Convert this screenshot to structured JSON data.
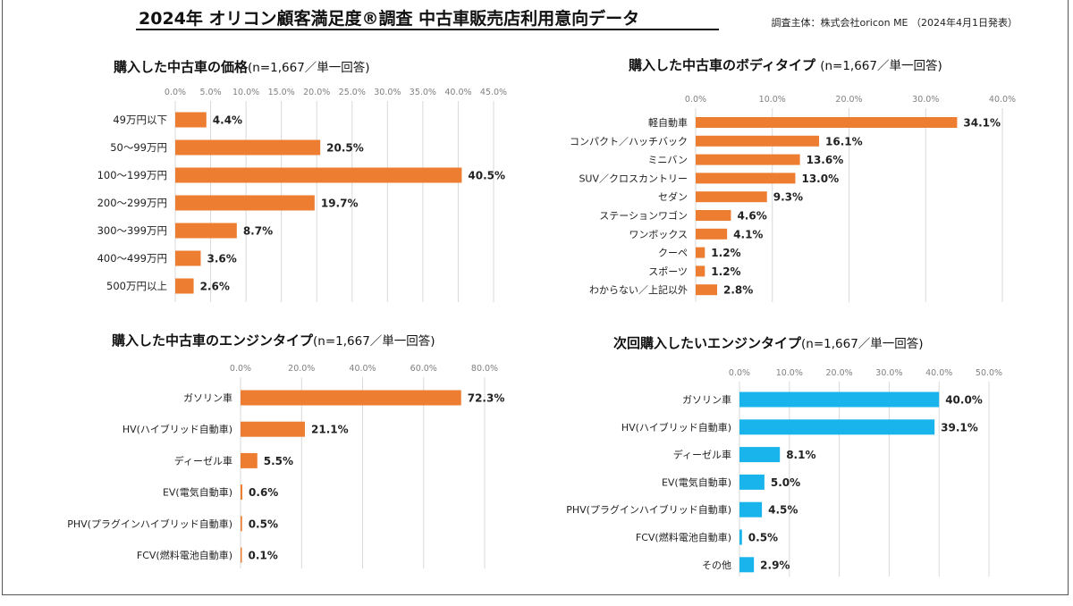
{
  "header": {
    "title": "2024年 オリコン顧客満足度®調査 中古車販売店利用意向データ",
    "source": "調査主体：株式会社oricon ME （2024年4月1日発表）"
  },
  "colors": {
    "orange": "#ED7D31",
    "blue": "#19B4EB",
    "grid": "#D9D9D9",
    "tick": "#808080"
  },
  "chart_data": [
    {
      "type": "bar",
      "orientation": "horizontal",
      "title": "購入した中古車の価格",
      "subtitle": "(n=1,667／単一回答)",
      "color": "#ED7D31",
      "xlim": [
        0,
        45
      ],
      "ticks": [
        "0.0%",
        "5.0%",
        "10.0%",
        "15.0%",
        "20.0%",
        "25.0%",
        "30.0%",
        "35.0%",
        "40.0%",
        "45.0%"
      ],
      "tick_values": [
        0,
        5,
        10,
        15,
        20,
        25,
        30,
        35,
        40,
        45
      ],
      "grid": true,
      "categories": [
        "49万円以下",
        "50～99万円",
        "100～199万円",
        "200～299万円",
        "300～399万円",
        "400～499万円",
        "500万円以上"
      ],
      "values": [
        4.4,
        20.5,
        40.5,
        19.7,
        8.7,
        3.6,
        2.6
      ],
      "value_labels": [
        "4.4%",
        "20.5%",
        "40.5%",
        "19.7%",
        "8.7%",
        "3.6%",
        "2.6%"
      ]
    },
    {
      "type": "bar",
      "orientation": "horizontal",
      "title": "購入した中古車のボディタイプ",
      "subtitle": "(n=1,667／単一回答)",
      "color": "#ED7D31",
      "xlim": [
        0,
        40
      ],
      "ticks": [
        "0.0%",
        "10.0%",
        "20.0%",
        "30.0%",
        "40.0%"
      ],
      "tick_values": [
        0,
        10,
        20,
        30,
        40
      ],
      "grid": true,
      "categories": [
        "軽自動車",
        "コンパクト／ハッチバック",
        "ミニバン",
        "SUV／クロスカントリー",
        "セダン",
        "ステーションワゴン",
        "ワンボックス",
        "クーペ",
        "スポーツ",
        "わからない／上記以外"
      ],
      "values": [
        34.1,
        16.1,
        13.6,
        13.0,
        9.3,
        4.6,
        4.1,
        1.2,
        1.2,
        2.8
      ],
      "value_labels": [
        "34.1%",
        "16.1%",
        "13.6%",
        "13.0%",
        "9.3%",
        "4.6%",
        "4.1%",
        "1.2%",
        "1.2%",
        "2.8%"
      ]
    },
    {
      "type": "bar",
      "orientation": "horizontal",
      "title": "購入した中古車のエンジンタイプ",
      "subtitle": "(n=1,667／単一回答)",
      "color": "#ED7D31",
      "xlim": [
        0,
        80
      ],
      "ticks": [
        "0.0%",
        "20.0%",
        "40.0%",
        "60.0%",
        "80.0%"
      ],
      "tick_values": [
        0,
        20,
        40,
        60,
        80
      ],
      "grid": true,
      "categories": [
        "ガソリン車",
        "HV(ハイブリッド自動車)",
        "ディーゼル車",
        "EV(電気自動車)",
        "PHV(プラグインハイブリッド自動車)",
        "FCV(燃料電池自動車)"
      ],
      "values": [
        72.3,
        21.1,
        5.5,
        0.6,
        0.5,
        0.1
      ],
      "value_labels": [
        "72.3%",
        "21.1%",
        "5.5%",
        "0.6%",
        "0.5%",
        "0.1%"
      ]
    },
    {
      "type": "bar",
      "orientation": "horizontal",
      "title": "次回購入したいエンジンタイプ",
      "subtitle": "(n=1,667／単一回答)",
      "color": "#19B4EB",
      "xlim": [
        0,
        50
      ],
      "ticks": [
        "0.0%",
        "10.0%",
        "20.0%",
        "30.0%",
        "40.0%",
        "50.0%"
      ],
      "tick_values": [
        0,
        10,
        20,
        30,
        40,
        50
      ],
      "grid": true,
      "categories": [
        "ガソリン車",
        "HV(ハイブリッド自動車)",
        "ディーゼル車",
        "EV(電気自動車)",
        "PHV(プラグインハイブリッド自動車)",
        "FCV(燃料電池自動車)",
        "その他"
      ],
      "values": [
        40.0,
        39.1,
        8.1,
        5.0,
        4.5,
        0.5,
        2.9
      ],
      "value_labels": [
        "40.0%",
        "39.1%",
        "8.1%",
        "5.0%",
        "4.5%",
        "0.5%",
        "2.9%"
      ]
    }
  ]
}
